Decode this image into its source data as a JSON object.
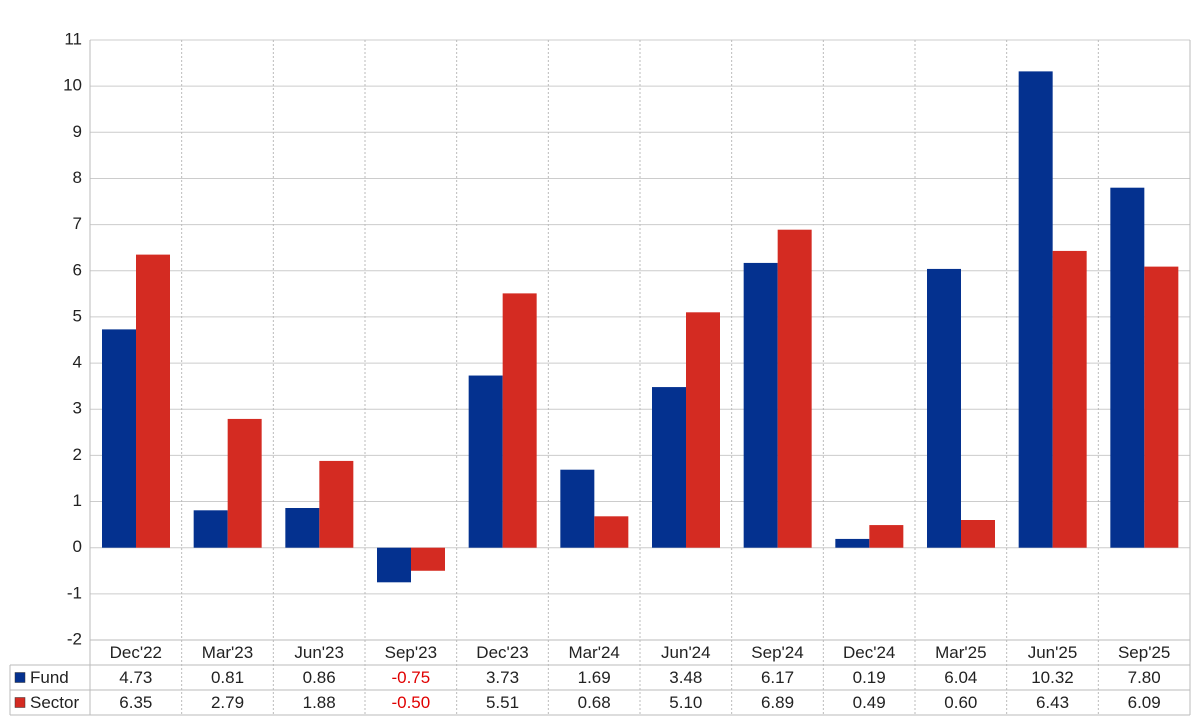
{
  "chart_data": {
    "type": "bar",
    "categories": [
      "Dec'22",
      "Mar'23",
      "Jun'23",
      "Sep'23",
      "Dec'23",
      "Mar'24",
      "Jun'24",
      "Sep'24",
      "Dec'24",
      "Mar'25",
      "Jun'25",
      "Sep'25"
    ],
    "series": [
      {
        "name": "Fund",
        "color": "#04318f",
        "values": [
          4.73,
          0.81,
          0.86,
          -0.75,
          3.73,
          1.69,
          3.48,
          6.17,
          0.19,
          6.04,
          10.32,
          7.8
        ],
        "value_labels": [
          "4.73",
          "0.81",
          "0.86",
          "-0.75",
          "3.73",
          "1.69",
          "3.48",
          "6.17",
          "0.19",
          "6.04",
          "10.32",
          "7.80"
        ]
      },
      {
        "name": "Sector",
        "color": "#d42b22",
        "values": [
          6.35,
          2.79,
          1.88,
          -0.5,
          5.51,
          0.68,
          5.1,
          6.89,
          0.49,
          0.6,
          6.43,
          6.09
        ],
        "value_labels": [
          "6.35",
          "2.79",
          "1.88",
          "-0.50",
          "5.51",
          "0.68",
          "5.10",
          "6.89",
          "0.49",
          "0.60",
          "6.43",
          "6.09"
        ]
      }
    ],
    "ylim": [
      -2,
      11
    ],
    "yticks": [
      -2,
      -1,
      0,
      1,
      2,
      3,
      4,
      5,
      6,
      7,
      8,
      9,
      10,
      11
    ],
    "grid": true
  }
}
